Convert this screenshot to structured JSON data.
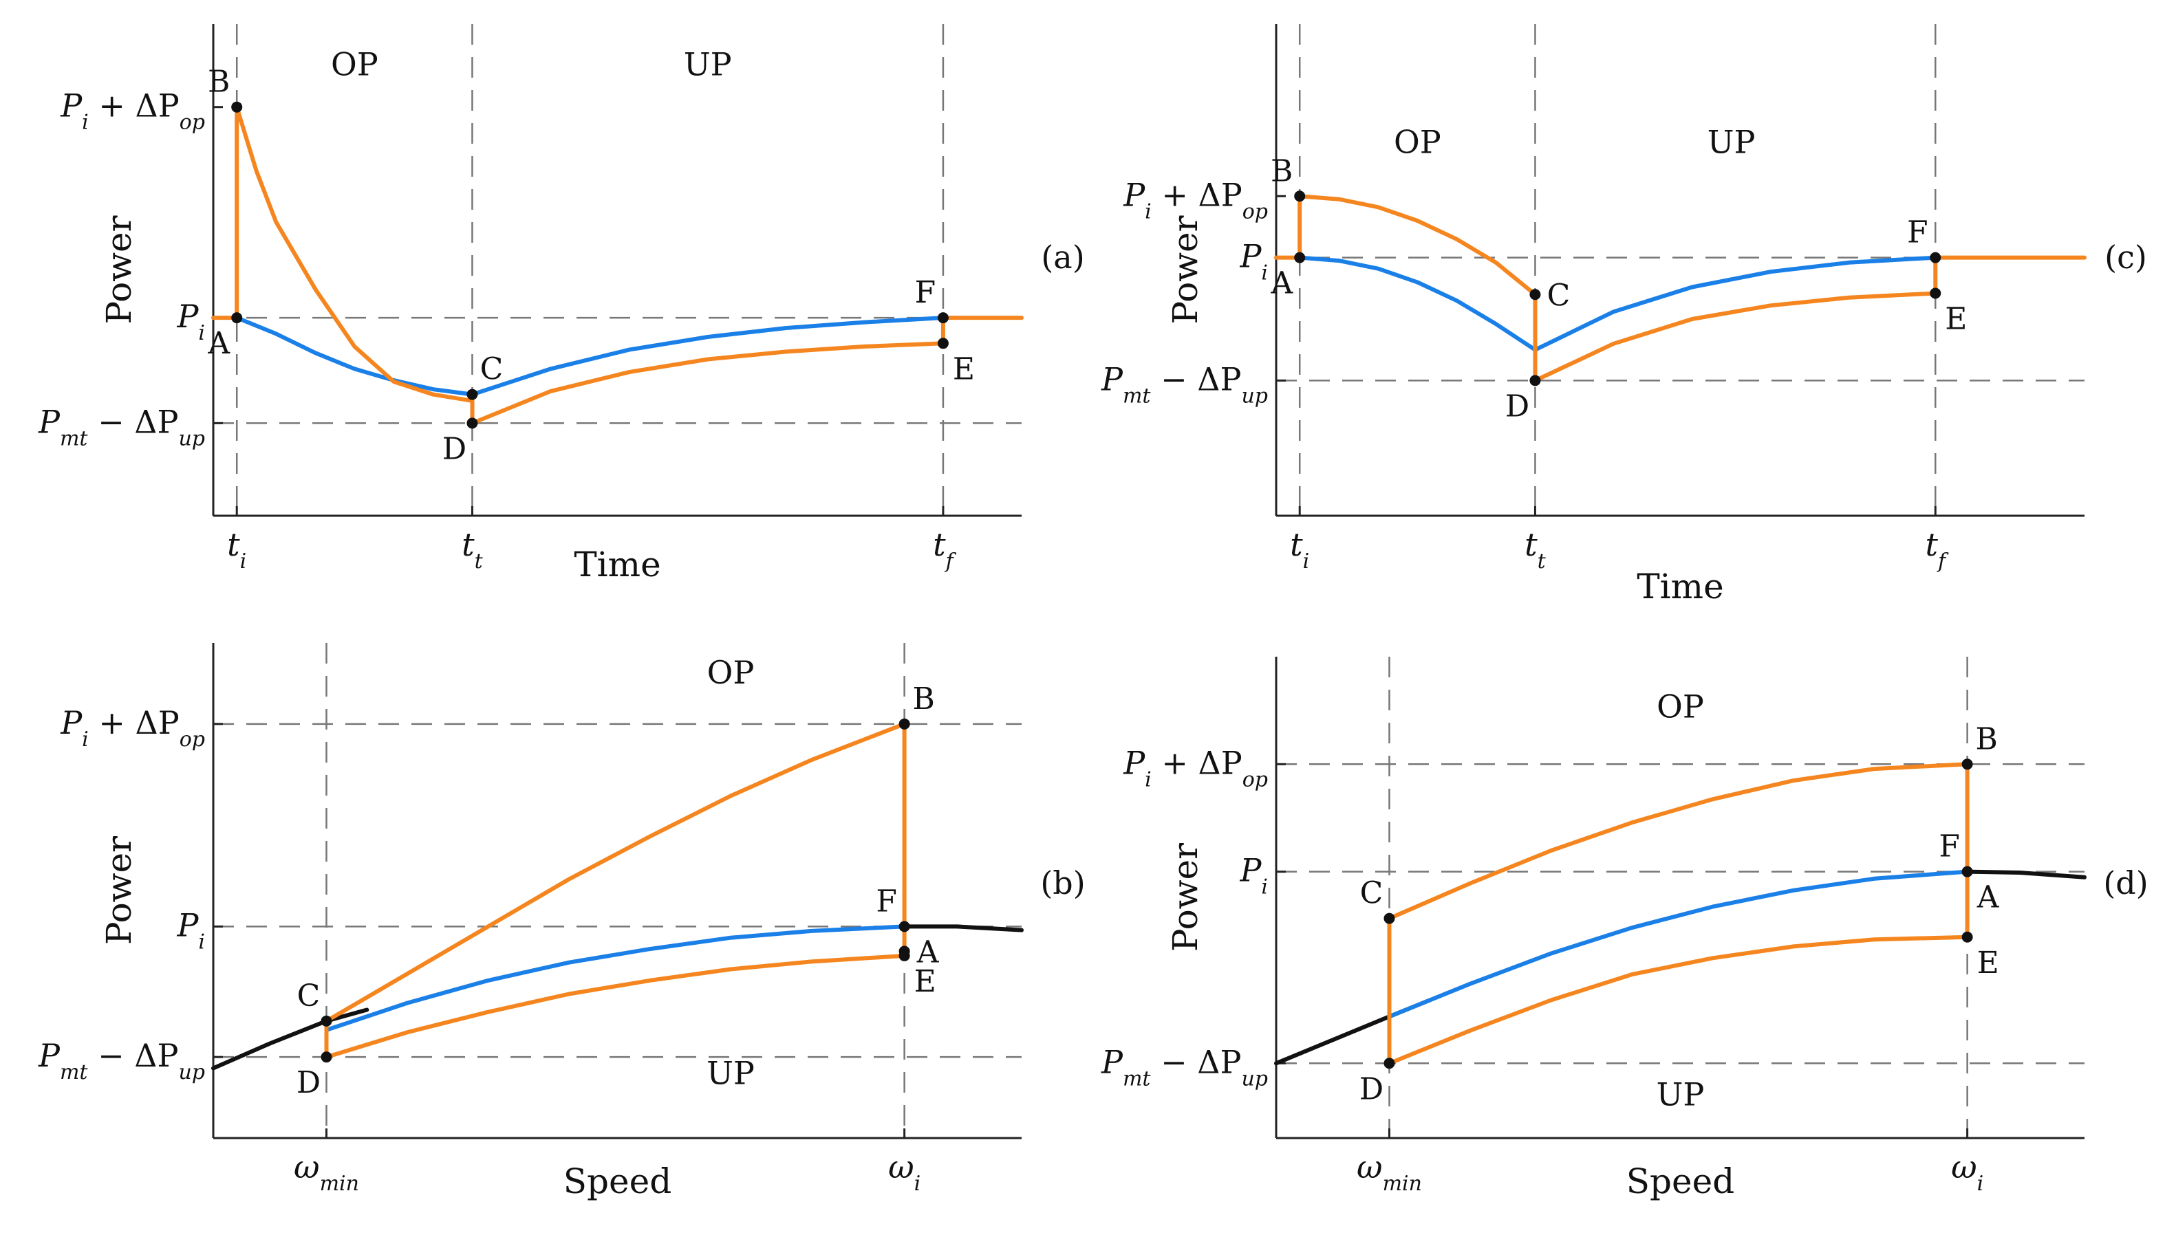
{
  "colors": {
    "orange": "#F5861F",
    "blue": "#1A80E8",
    "black": "#111111",
    "dash": "#777777"
  },
  "chart_data": [
    {
      "id": "a",
      "type": "line",
      "panel_label": "(a)",
      "xlabel": "Time",
      "ylabel": "Power",
      "xlim": [
        -0.3,
        10.0
      ],
      "ylim": [
        -2.1,
        5.6
      ],
      "xticks": [
        {
          "v": 0,
          "text": "t",
          "sub": "i"
        },
        {
          "v": 3,
          "text": "t",
          "sub": "t"
        },
        {
          "v": 9,
          "text": "t",
          "sub": "f"
        }
      ],
      "yticks": [
        {
          "v": 4.3,
          "text": "P",
          "sub": "i",
          "suffix": " + ΔP",
          "sub2": "op"
        },
        {
          "v": 1.0,
          "text": "P",
          "sub": "i"
        },
        {
          "v": -0.65,
          "text": "P",
          "sub": "mt",
          "suffix": " − ΔP",
          "sub2": "up"
        }
      ],
      "vlines": [
        0,
        3,
        9
      ],
      "hlines": [
        1.0,
        -0.65
      ],
      "region_labels": [
        {
          "text": "OP",
          "x": 1.5,
          "y": 4.8
        },
        {
          "text": "UP",
          "x": 6.0,
          "y": 4.8
        }
      ],
      "series": [
        {
          "name": "blue",
          "color": "blue",
          "x": [
            0,
            0.5,
            1.0,
            1.5,
            2.0,
            2.5,
            3.0,
            4.0,
            5.0,
            6.0,
            7.0,
            8.0,
            9.0
          ],
          "y": [
            1.0,
            0.75,
            0.45,
            0.2,
            0.02,
            -0.12,
            -0.2,
            0.2,
            0.5,
            0.7,
            0.84,
            0.93,
            1.0
          ]
        },
        {
          "name": "orange-OP",
          "color": "orange",
          "x": [
            -0.3,
            0,
            0,
            0.25,
            0.5,
            1.0,
            1.5,
            2.0,
            2.5,
            3.0
          ],
          "y": [
            1.0,
            1.0,
            4.3,
            3.3,
            2.5,
            1.45,
            0.55,
            0.0,
            -0.2,
            -0.3
          ]
        },
        {
          "name": "orange-UP",
          "color": "orange",
          "x": [
            3.0,
            3.0,
            4.0,
            5.0,
            6.0,
            7.0,
            8.0,
            9.0,
            9.0,
            10.0
          ],
          "y": [
            -0.3,
            -0.65,
            -0.15,
            0.15,
            0.35,
            0.47,
            0.55,
            0.6,
            1.0,
            1.0
          ]
        }
      ],
      "points": [
        {
          "name": "A",
          "x": 0,
          "y": 1.0,
          "pos": "below-left"
        },
        {
          "name": "B",
          "x": 0,
          "y": 4.3,
          "pos": "above-left"
        },
        {
          "name": "C",
          "x": 3.0,
          "y": -0.2,
          "pos": "above-right"
        },
        {
          "name": "D",
          "x": 3.0,
          "y": -0.65,
          "pos": "below-left"
        },
        {
          "name": "E",
          "x": 9.0,
          "y": 0.6,
          "pos": "below-right"
        },
        {
          "name": "F",
          "x": 9.0,
          "y": 1.0,
          "pos": "above-left"
        }
      ]
    },
    {
      "id": "b",
      "type": "line",
      "panel_label": "(b)",
      "xlabel": "Speed",
      "ylabel": "Power",
      "xlim": [
        -1.4,
        8.6
      ],
      "ylim": [
        -2.5,
        8.5
      ],
      "xticks": [
        {
          "v": 0,
          "text": "ω",
          "sub": "min"
        },
        {
          "v": 7.15,
          "text": "ω",
          "sub": "i"
        }
      ],
      "yticks": [
        {
          "v": 6.7,
          "text": "P",
          "sub": "i",
          "suffix": " + ΔP",
          "sub2": "op"
        },
        {
          "v": 2.2,
          "text": "P",
          "sub": "i"
        },
        {
          "v": -0.7,
          "text": "P",
          "sub": "mt",
          "suffix": " − ΔP",
          "sub2": "up"
        }
      ],
      "vlines": [
        0,
        7.15
      ],
      "hlines": [
        6.7,
        2.2,
        -0.7
      ],
      "region_labels": [
        {
          "text": "OP",
          "x": 5.0,
          "y": 7.6
        },
        {
          "text": "UP",
          "x": 5.0,
          "y": -1.3
        }
      ],
      "series": [
        {
          "name": "black",
          "color": "black",
          "x": [
            -1.4,
            -0.7,
            0,
            0.5
          ],
          "y": [
            -0.95,
            -0.4,
            0.1,
            0.35
          ]
        },
        {
          "name": "black-tail",
          "color": "black",
          "x": [
            7.15,
            7.8,
            8.6
          ],
          "y": [
            2.2,
            2.2,
            2.12
          ]
        },
        {
          "name": "blue",
          "color": "blue",
          "x": [
            0,
            1.0,
            2.0,
            3.0,
            4.0,
            5.0,
            6.0,
            7.15
          ],
          "y": [
            -0.1,
            0.5,
            1.0,
            1.4,
            1.7,
            1.95,
            2.1,
            2.2
          ]
        },
        {
          "name": "orange-top",
          "color": "orange",
          "x": [
            0,
            1.0,
            2.0,
            3.0,
            4.0,
            5.0,
            6.0,
            7.15
          ],
          "y": [
            0.1,
            1.15,
            2.2,
            3.25,
            4.2,
            5.1,
            5.9,
            6.7
          ]
        },
        {
          "name": "orange-bottom",
          "color": "orange",
          "x": [
            0,
            1.0,
            2.0,
            3.0,
            4.0,
            5.0,
            6.0,
            7.15
          ],
          "y": [
            -0.7,
            -0.15,
            0.3,
            0.7,
            1.0,
            1.25,
            1.42,
            1.55
          ]
        },
        {
          "name": "orange-right",
          "color": "orange",
          "x": [
            7.15,
            7.15
          ],
          "y": [
            1.55,
            6.7
          ]
        },
        {
          "name": "orange-left",
          "color": "orange",
          "x": [
            0,
            0
          ],
          "y": [
            -0.7,
            0.1
          ]
        }
      ],
      "points": [
        {
          "name": "A",
          "x": 7.15,
          "y": 1.65,
          "pos": "right"
        },
        {
          "name": "B",
          "x": 7.15,
          "y": 6.7,
          "pos": "above-right"
        },
        {
          "name": "C",
          "x": 0,
          "y": 0.1,
          "pos": "above-left"
        },
        {
          "name": "D",
          "x": 0,
          "y": -0.7,
          "pos": "below-left"
        },
        {
          "name": "E",
          "x": 7.15,
          "y": 1.55,
          "pos": "below-right"
        },
        {
          "name": "F",
          "x": 7.15,
          "y": 2.2,
          "pos": "above-left"
        }
      ]
    },
    {
      "id": "c",
      "type": "line",
      "panel_label": "(c)",
      "xlabel": "Time",
      "ylabel": "Power",
      "xlim": [
        -0.3,
        10.0
      ],
      "ylim": [
        -3.2,
        4.8
      ],
      "xticks": [
        {
          "v": 0,
          "text": "t",
          "sub": "i"
        },
        {
          "v": 3,
          "text": "t",
          "sub": "t"
        },
        {
          "v": 8.1,
          "text": "t",
          "sub": "f"
        }
      ],
      "yticks": [
        {
          "v": 2.0,
          "text": "P",
          "sub": "i",
          "suffix": " + ΔP",
          "sub2": "op"
        },
        {
          "v": 1.0,
          "text": "P",
          "sub": "i"
        },
        {
          "v": -1.0,
          "text": "P",
          "sub": "mt",
          "suffix": " − ΔP",
          "sub2": "up"
        }
      ],
      "vlines": [
        0,
        3,
        8.1
      ],
      "hlines": [
        1.0,
        -1.0
      ],
      "region_labels": [
        {
          "text": "OP",
          "x": 1.5,
          "y": 2.7
        },
        {
          "text": "UP",
          "x": 5.5,
          "y": 2.7
        }
      ],
      "series": [
        {
          "name": "blue",
          "color": "blue",
          "x": [
            0,
            0.5,
            1.0,
            1.5,
            2.0,
            2.5,
            3.0,
            4.0,
            5.0,
            6.0,
            7.0,
            8.1
          ],
          "y": [
            1.0,
            0.95,
            0.82,
            0.6,
            0.3,
            -0.08,
            -0.5,
            0.12,
            0.52,
            0.77,
            0.92,
            1.0
          ]
        },
        {
          "name": "orange-OP",
          "color": "orange",
          "x": [
            -0.3,
            0,
            0,
            0.5,
            1.0,
            1.5,
            2.0,
            2.5,
            3.0
          ],
          "y": [
            1.0,
            1.0,
            2.0,
            1.95,
            1.82,
            1.6,
            1.3,
            0.92,
            0.4
          ]
        },
        {
          "name": "orange-UP",
          "color": "orange",
          "x": [
            3.0,
            3.0,
            4.0,
            5.0,
            6.0,
            7.0,
            8.1,
            8.1,
            10.0
          ],
          "y": [
            0.4,
            -1.0,
            -0.4,
            0.0,
            0.22,
            0.35,
            0.42,
            1.0,
            1.0
          ]
        }
      ],
      "points": [
        {
          "name": "A",
          "x": 0,
          "y": 1.0,
          "pos": "below-left"
        },
        {
          "name": "B",
          "x": 0,
          "y": 2.0,
          "pos": "above-left"
        },
        {
          "name": "C",
          "x": 3.0,
          "y": 0.4,
          "pos": "right"
        },
        {
          "name": "D",
          "x": 3.0,
          "y": -1.0,
          "pos": "below-left"
        },
        {
          "name": "E",
          "x": 8.1,
          "y": 0.42,
          "pos": "below-right"
        },
        {
          "name": "F",
          "x": 8.1,
          "y": 1.0,
          "pos": "above-left"
        }
      ]
    },
    {
      "id": "d",
      "type": "line",
      "panel_label": "(d)",
      "xlabel": "Speed",
      "ylabel": "Power",
      "xlim": [
        -1.4,
        8.6
      ],
      "ylim": [
        -3.3,
        7.0
      ],
      "xticks": [
        {
          "v": 0,
          "text": "ω",
          "sub": "min"
        },
        {
          "v": 7.15,
          "text": "ω",
          "sub": "i"
        }
      ],
      "yticks": [
        {
          "v": 4.7,
          "text": "P",
          "sub": "i",
          "suffix": " + ΔP",
          "sub2": "op"
        },
        {
          "v": 2.4,
          "text": "P",
          "sub": "i"
        },
        {
          "v": -1.7,
          "text": "P",
          "sub": "mt",
          "suffix": " − ΔP",
          "sub2": "up"
        }
      ],
      "vlines": [
        0,
        7.15
      ],
      "hlines": [
        4.7,
        2.4,
        -1.7
      ],
      "region_labels": [
        {
          "text": "OP",
          "x": 3.6,
          "y": 5.7
        },
        {
          "text": "UP",
          "x": 3.6,
          "y": -2.6
        }
      ],
      "series": [
        {
          "name": "black",
          "color": "black",
          "x": [
            -1.4,
            -0.7,
            0,
            0.5
          ],
          "y": [
            -1.7,
            -1.2,
            -0.7,
            -0.35
          ]
        },
        {
          "name": "black-tail",
          "color": "black",
          "x": [
            7.15,
            7.8,
            8.6
          ],
          "y": [
            2.4,
            2.38,
            2.28
          ]
        },
        {
          "name": "blue",
          "color": "blue",
          "x": [
            0,
            1.0,
            2.0,
            3.0,
            4.0,
            5.0,
            6.0,
            7.15
          ],
          "y": [
            -0.7,
            0.0,
            0.65,
            1.2,
            1.65,
            2.0,
            2.25,
            2.4
          ]
        },
        {
          "name": "orange-top",
          "color": "orange",
          "x": [
            0,
            1.0,
            2.0,
            3.0,
            4.0,
            5.0,
            6.0,
            7.15
          ],
          "y": [
            1.4,
            2.15,
            2.85,
            3.45,
            3.95,
            4.35,
            4.6,
            4.7
          ]
        },
        {
          "name": "orange-bottom",
          "color": "orange",
          "x": [
            0,
            1.0,
            2.0,
            3.0,
            4.0,
            5.0,
            6.0,
            7.15
          ],
          "y": [
            -1.7,
            -1.0,
            -0.35,
            0.2,
            0.55,
            0.8,
            0.95,
            1.0
          ]
        },
        {
          "name": "orange-right",
          "color": "orange",
          "x": [
            7.15,
            7.15
          ],
          "y": [
            1.0,
            4.7
          ]
        },
        {
          "name": "orange-left",
          "color": "orange",
          "x": [
            0,
            0
          ],
          "y": [
            -1.7,
            1.4
          ]
        }
      ],
      "points": [
        {
          "name": "A",
          "x": 7.15,
          "y": 2.4,
          "pos": "below-right"
        },
        {
          "name": "B",
          "x": 7.15,
          "y": 4.7,
          "pos": "above-right"
        },
        {
          "name": "C",
          "x": 0,
          "y": 1.4,
          "pos": "above-left"
        },
        {
          "name": "D",
          "x": 0,
          "y": -1.7,
          "pos": "below-left"
        },
        {
          "name": "E",
          "x": 7.15,
          "y": 1.0,
          "pos": "below-right"
        },
        {
          "name": "F",
          "x": 7.15,
          "y": 2.4,
          "pos": "above-left"
        }
      ]
    }
  ]
}
